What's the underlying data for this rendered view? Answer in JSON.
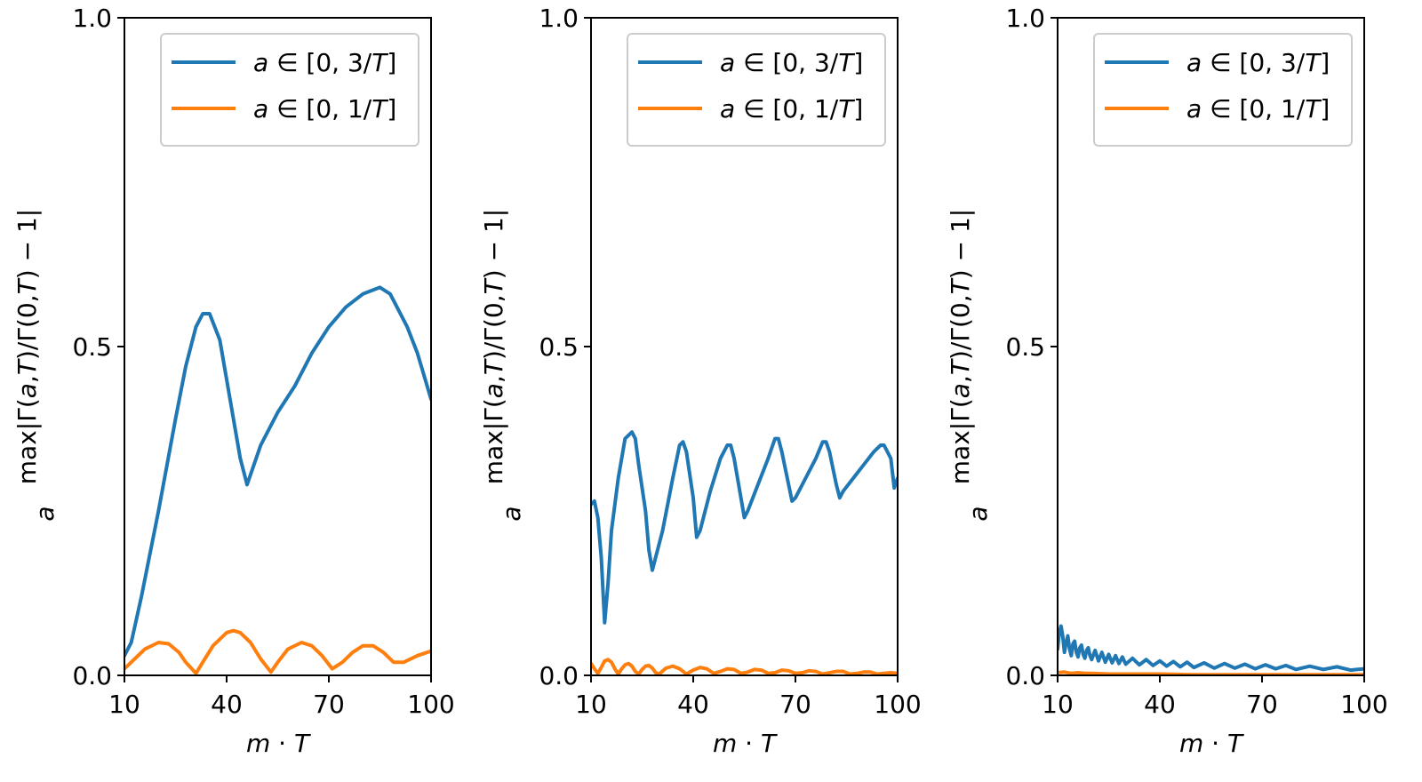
{
  "chart_data": [
    {
      "type": "line",
      "panel": "left",
      "xlabel": "m · T",
      "ylabel": "max|Γ(a,T)/Γ(0,T) − 1|",
      "ylabel_subscript": "a",
      "xlim": [
        10,
        100
      ],
      "ylim": [
        0,
        1
      ],
      "xticks": [
        10,
        40,
        70,
        100
      ],
      "yticks": [
        0.0,
        0.5,
        1.0
      ],
      "xtick_labels": [
        "10",
        "40",
        "70",
        "100"
      ],
      "ytick_labels": [
        "0.0",
        "0.5",
        "1.0"
      ],
      "legend_position": "top-right",
      "series": [
        {
          "name": "a ∈ [0, 3/T]",
          "color": "#1f77b4",
          "x": [
            10,
            12,
            15,
            20,
            25,
            28,
            31,
            33,
            35,
            38,
            41,
            44,
            46,
            48,
            50,
            55,
            60,
            65,
            70,
            75,
            80,
            85,
            88,
            90,
            93,
            96,
            100
          ],
          "y": [
            0.03,
            0.05,
            0.12,
            0.25,
            0.39,
            0.47,
            0.53,
            0.55,
            0.55,
            0.51,
            0.42,
            0.33,
            0.29,
            0.32,
            0.35,
            0.4,
            0.44,
            0.49,
            0.53,
            0.56,
            0.58,
            0.59,
            0.58,
            0.56,
            0.53,
            0.49,
            0.42
          ]
        },
        {
          "name": "a ∈ [0, 1/T]",
          "color": "#ff7f0e",
          "x": [
            10,
            13,
            16,
            20,
            23,
            26,
            28,
            31,
            33,
            36,
            40,
            42,
            44,
            47,
            50,
            53,
            55,
            58,
            62,
            65,
            68,
            71,
            74,
            77,
            80,
            83,
            86,
            89,
            92,
            96,
            100
          ],
          "y": [
            0.01,
            0.025,
            0.04,
            0.05,
            0.048,
            0.035,
            0.02,
            0.003,
            0.02,
            0.045,
            0.065,
            0.068,
            0.065,
            0.05,
            0.025,
            0.005,
            0.02,
            0.04,
            0.05,
            0.045,
            0.03,
            0.01,
            0.02,
            0.035,
            0.045,
            0.045,
            0.035,
            0.02,
            0.02,
            0.03,
            0.037
          ]
        }
      ]
    },
    {
      "type": "line",
      "panel": "middle",
      "xlabel": "m · T",
      "ylabel": "max|Γ(a,T)/Γ(0,T) − 1|",
      "ylabel_subscript": "a",
      "xlim": [
        10,
        100
      ],
      "ylim": [
        0,
        1
      ],
      "xticks": [
        10,
        40,
        70,
        100
      ],
      "yticks": [
        0.0,
        0.5,
        1.0
      ],
      "xtick_labels": [
        "10",
        "40",
        "70",
        "100"
      ],
      "ytick_labels": [
        "0.0",
        "0.5",
        "1.0"
      ],
      "legend_position": "top-right",
      "series": [
        {
          "name": "a ∈ [0, 3/T]",
          "color": "#1f77b4",
          "x": [
            10,
            11,
            12,
            13,
            14,
            15,
            16,
            18,
            20,
            22,
            23,
            24,
            26,
            27,
            28,
            31,
            34,
            36,
            37,
            38,
            40,
            41,
            42,
            45,
            48,
            50,
            51,
            52,
            54,
            55,
            56,
            59,
            62,
            64,
            65,
            66,
            68,
            69,
            70,
            73,
            76,
            78,
            79,
            80,
            82,
            83,
            84,
            87,
            90,
            93,
            95,
            96,
            98,
            99,
            100
          ],
          "y": [
            0.26,
            0.265,
            0.24,
            0.18,
            0.08,
            0.14,
            0.22,
            0.3,
            0.36,
            0.37,
            0.36,
            0.32,
            0.25,
            0.19,
            0.16,
            0.22,
            0.3,
            0.35,
            0.355,
            0.34,
            0.27,
            0.21,
            0.22,
            0.28,
            0.33,
            0.35,
            0.35,
            0.33,
            0.27,
            0.24,
            0.25,
            0.29,
            0.33,
            0.36,
            0.36,
            0.34,
            0.29,
            0.265,
            0.27,
            0.3,
            0.33,
            0.355,
            0.355,
            0.34,
            0.29,
            0.27,
            0.28,
            0.3,
            0.32,
            0.34,
            0.35,
            0.35,
            0.33,
            0.285,
            0.3
          ]
        },
        {
          "name": "a ∈ [0, 1/T]",
          "color": "#ff7f0e",
          "x": [
            10,
            11,
            12,
            13,
            14,
            15,
            16,
            17,
            18,
            19,
            20,
            21,
            22,
            23,
            24,
            25,
            26,
            27,
            28,
            29,
            30,
            32,
            34,
            36,
            38,
            40,
            42,
            44,
            46,
            48,
            50,
            52,
            54,
            56,
            58,
            60,
            62,
            64,
            66,
            68,
            70,
            72,
            74,
            76,
            78,
            80,
            82,
            84,
            86,
            88,
            90,
            92,
            94,
            96,
            98,
            100
          ],
          "y": [
            0.018,
            0.01,
            0.003,
            0.012,
            0.022,
            0.024,
            0.02,
            0.01,
            0.002,
            0.01,
            0.016,
            0.018,
            0.014,
            0.006,
            0.002,
            0.009,
            0.014,
            0.015,
            0.011,
            0.004,
            0.002,
            0.011,
            0.014,
            0.01,
            0.002,
            0.008,
            0.012,
            0.01,
            0.003,
            0.006,
            0.01,
            0.009,
            0.003,
            0.005,
            0.009,
            0.008,
            0.003,
            0.004,
            0.008,
            0.007,
            0.003,
            0.004,
            0.007,
            0.006,
            0.002,
            0.004,
            0.006,
            0.006,
            0.002,
            0.003,
            0.005,
            0.005,
            0.002,
            0.003,
            0.004,
            0.003
          ]
        }
      ]
    },
    {
      "type": "line",
      "panel": "right",
      "xlabel": "m · T",
      "ylabel": "max|Γ(a,T)/Γ(0,T) − 1|",
      "ylabel_subscript": "a",
      "xlim": [
        10,
        100
      ],
      "ylim": [
        0,
        1
      ],
      "xticks": [
        10,
        40,
        70,
        100
      ],
      "yticks": [
        0.0,
        0.5,
        1.0
      ],
      "xtick_labels": [
        "10",
        "40",
        "70",
        "100"
      ],
      "ytick_labels": [
        "0.0",
        "0.5",
        "1.0"
      ],
      "legend_position": "top-right",
      "series": [
        {
          "name": "a ∈ [0, 3/T]",
          "color": "#1f77b4",
          "x": [
            10,
            10.5,
            11,
            11.5,
            12,
            12.5,
            13,
            13.5,
            14,
            14.5,
            15,
            15.5,
            16,
            16.5,
            17,
            17.5,
            18,
            18.5,
            19,
            19.5,
            20,
            21,
            22,
            23,
            24,
            25,
            26,
            27,
            28,
            29,
            30,
            32,
            34,
            36,
            38,
            40,
            42,
            44,
            46,
            48,
            50,
            53,
            56,
            59,
            62,
            65,
            68,
            71,
            74,
            77,
            80,
            84,
            88,
            92,
            96,
            100
          ],
          "y": [
            0.04,
            0.065,
            0.075,
            0.06,
            0.035,
            0.05,
            0.06,
            0.04,
            0.03,
            0.048,
            0.052,
            0.035,
            0.028,
            0.042,
            0.046,
            0.032,
            0.026,
            0.038,
            0.042,
            0.03,
            0.024,
            0.038,
            0.022,
            0.035,
            0.02,
            0.032,
            0.019,
            0.03,
            0.018,
            0.028,
            0.017,
            0.026,
            0.016,
            0.024,
            0.015,
            0.022,
            0.014,
            0.021,
            0.013,
            0.02,
            0.012,
            0.019,
            0.011,
            0.018,
            0.011,
            0.017,
            0.01,
            0.016,
            0.01,
            0.015,
            0.009,
            0.014,
            0.009,
            0.013,
            0.008,
            0.01
          ]
        },
        {
          "name": "a ∈ [0, 1/T]",
          "color": "#ff7f0e",
          "x": [
            10,
            12,
            14,
            16,
            18,
            20,
            25,
            30,
            40,
            50,
            60,
            70,
            80,
            90,
            100
          ],
          "y": [
            0.004,
            0.005,
            0.003,
            0.004,
            0.003,
            0.003,
            0.002,
            0.002,
            0.002,
            0.001,
            0.001,
            0.001,
            0.001,
            0.001,
            0.001
          ]
        }
      ]
    }
  ]
}
